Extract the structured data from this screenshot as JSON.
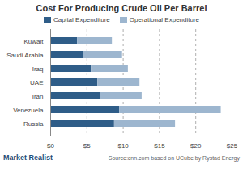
{
  "chart_data": {
    "type": "bar",
    "title": "Cost For Producing Crude Oil Per Barrel",
    "orientation": "horizontal",
    "stacked": true,
    "grid": true,
    "legend": "top",
    "categories": [
      "Kuwait",
      "Saudi Arabia",
      "Iraq",
      "UAE",
      "Iran",
      "Venezuela",
      "Russia"
    ],
    "series": [
      {
        "name": "Capital Expenditure",
        "color": "#2f5d88",
        "values": [
          3.7,
          4.5,
          5.6,
          6.5,
          6.9,
          9.5,
          8.8
        ]
      },
      {
        "name": "Operational Expenditure",
        "color": "#9db6cf",
        "values": [
          4.8,
          5.4,
          5.1,
          5.8,
          5.7,
          14.0,
          8.4
        ]
      }
    ],
    "xlim": [
      0,
      25
    ],
    "xticks": [
      {
        "value": 0,
        "label": "$0"
      },
      {
        "value": 5,
        "label": "$5"
      },
      {
        "value": 10,
        "label": "$10"
      },
      {
        "value": 15,
        "label": "$15"
      },
      {
        "value": 20,
        "label": "$20"
      },
      {
        "value": 25,
        "label": "$25"
      }
    ],
    "annotations": [
      "Source:cnn.com based on UCube by Rystad Energy",
      "Market Realist"
    ]
  }
}
